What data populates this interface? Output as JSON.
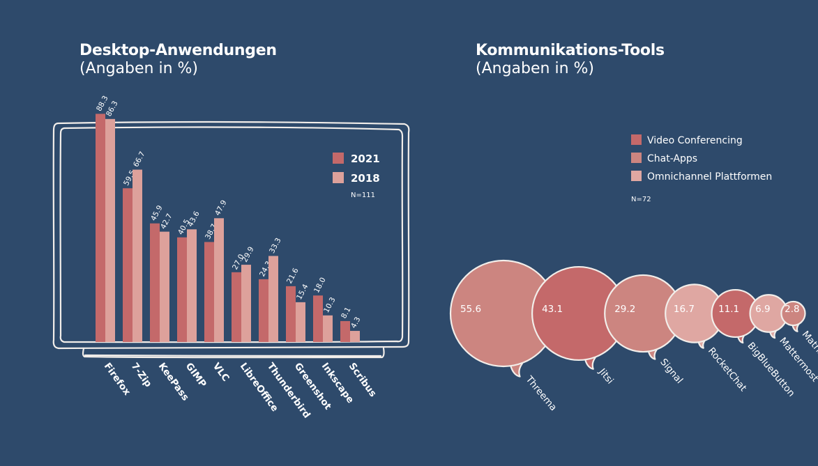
{
  "colors": {
    "background": "#2e4a6b",
    "series_2021": "#c4696a",
    "series_2018": "#dda19b",
    "video_conferencing": "#c4696a",
    "chat_apps": "#cc8580",
    "omnichannel": "#dfa7a2",
    "outline": "#f2eeea"
  },
  "chart_data": [
    {
      "type": "bar",
      "title": "Desktop-Anwendungen",
      "subtitle": "(Angaben in %)",
      "categories": [
        "Firefox",
        "7-Zip",
        "KeePass",
        "GIMP",
        "VLC",
        "LibreOffice",
        "Thunderbird",
        "Greenshot",
        "Inkscape",
        "Scribus"
      ],
      "series": [
        {
          "name": "2021",
          "values": [
            88.3,
            59.5,
            45.9,
            40.5,
            38.7,
            27.0,
            24.3,
            21.6,
            18.0,
            8.1
          ]
        },
        {
          "name": "2018",
          "values": [
            86.3,
            66.7,
            42.7,
            43.6,
            47.9,
            29.9,
            33.3,
            15.4,
            10.3,
            4.3
          ]
        }
      ],
      "sample_note": "N=111",
      "legend_position": "top-right",
      "ylim": [
        0,
        100
      ],
      "grid": false
    },
    {
      "type": "bubble",
      "title": "Kommunikations-Tools",
      "subtitle": "(Angaben in %)",
      "legend": [
        "Video Conferencing",
        "Chat-Apps",
        "Omnichannel Plattformen"
      ],
      "sample_note": "N=72",
      "legend_position": "top-right",
      "items": [
        {
          "label": "Threema",
          "value": 55.6,
          "category": "Chat-Apps"
        },
        {
          "label": "Jitsi",
          "value": 43.1,
          "category": "Video Conferencing"
        },
        {
          "label": "Signal",
          "value": 29.2,
          "category": "Chat-Apps"
        },
        {
          "label": "RocketChat",
          "value": 16.7,
          "category": "Omnichannel Plattformen"
        },
        {
          "label": "BigBlueButton",
          "value": 11.1,
          "category": "Video Conferencing"
        },
        {
          "label": "Mattermost",
          "value": 6.9,
          "category": "Omnichannel Plattformen"
        },
        {
          "label": "Matrix",
          "value": 2.8,
          "category": "Chat-Apps"
        }
      ]
    }
  ]
}
